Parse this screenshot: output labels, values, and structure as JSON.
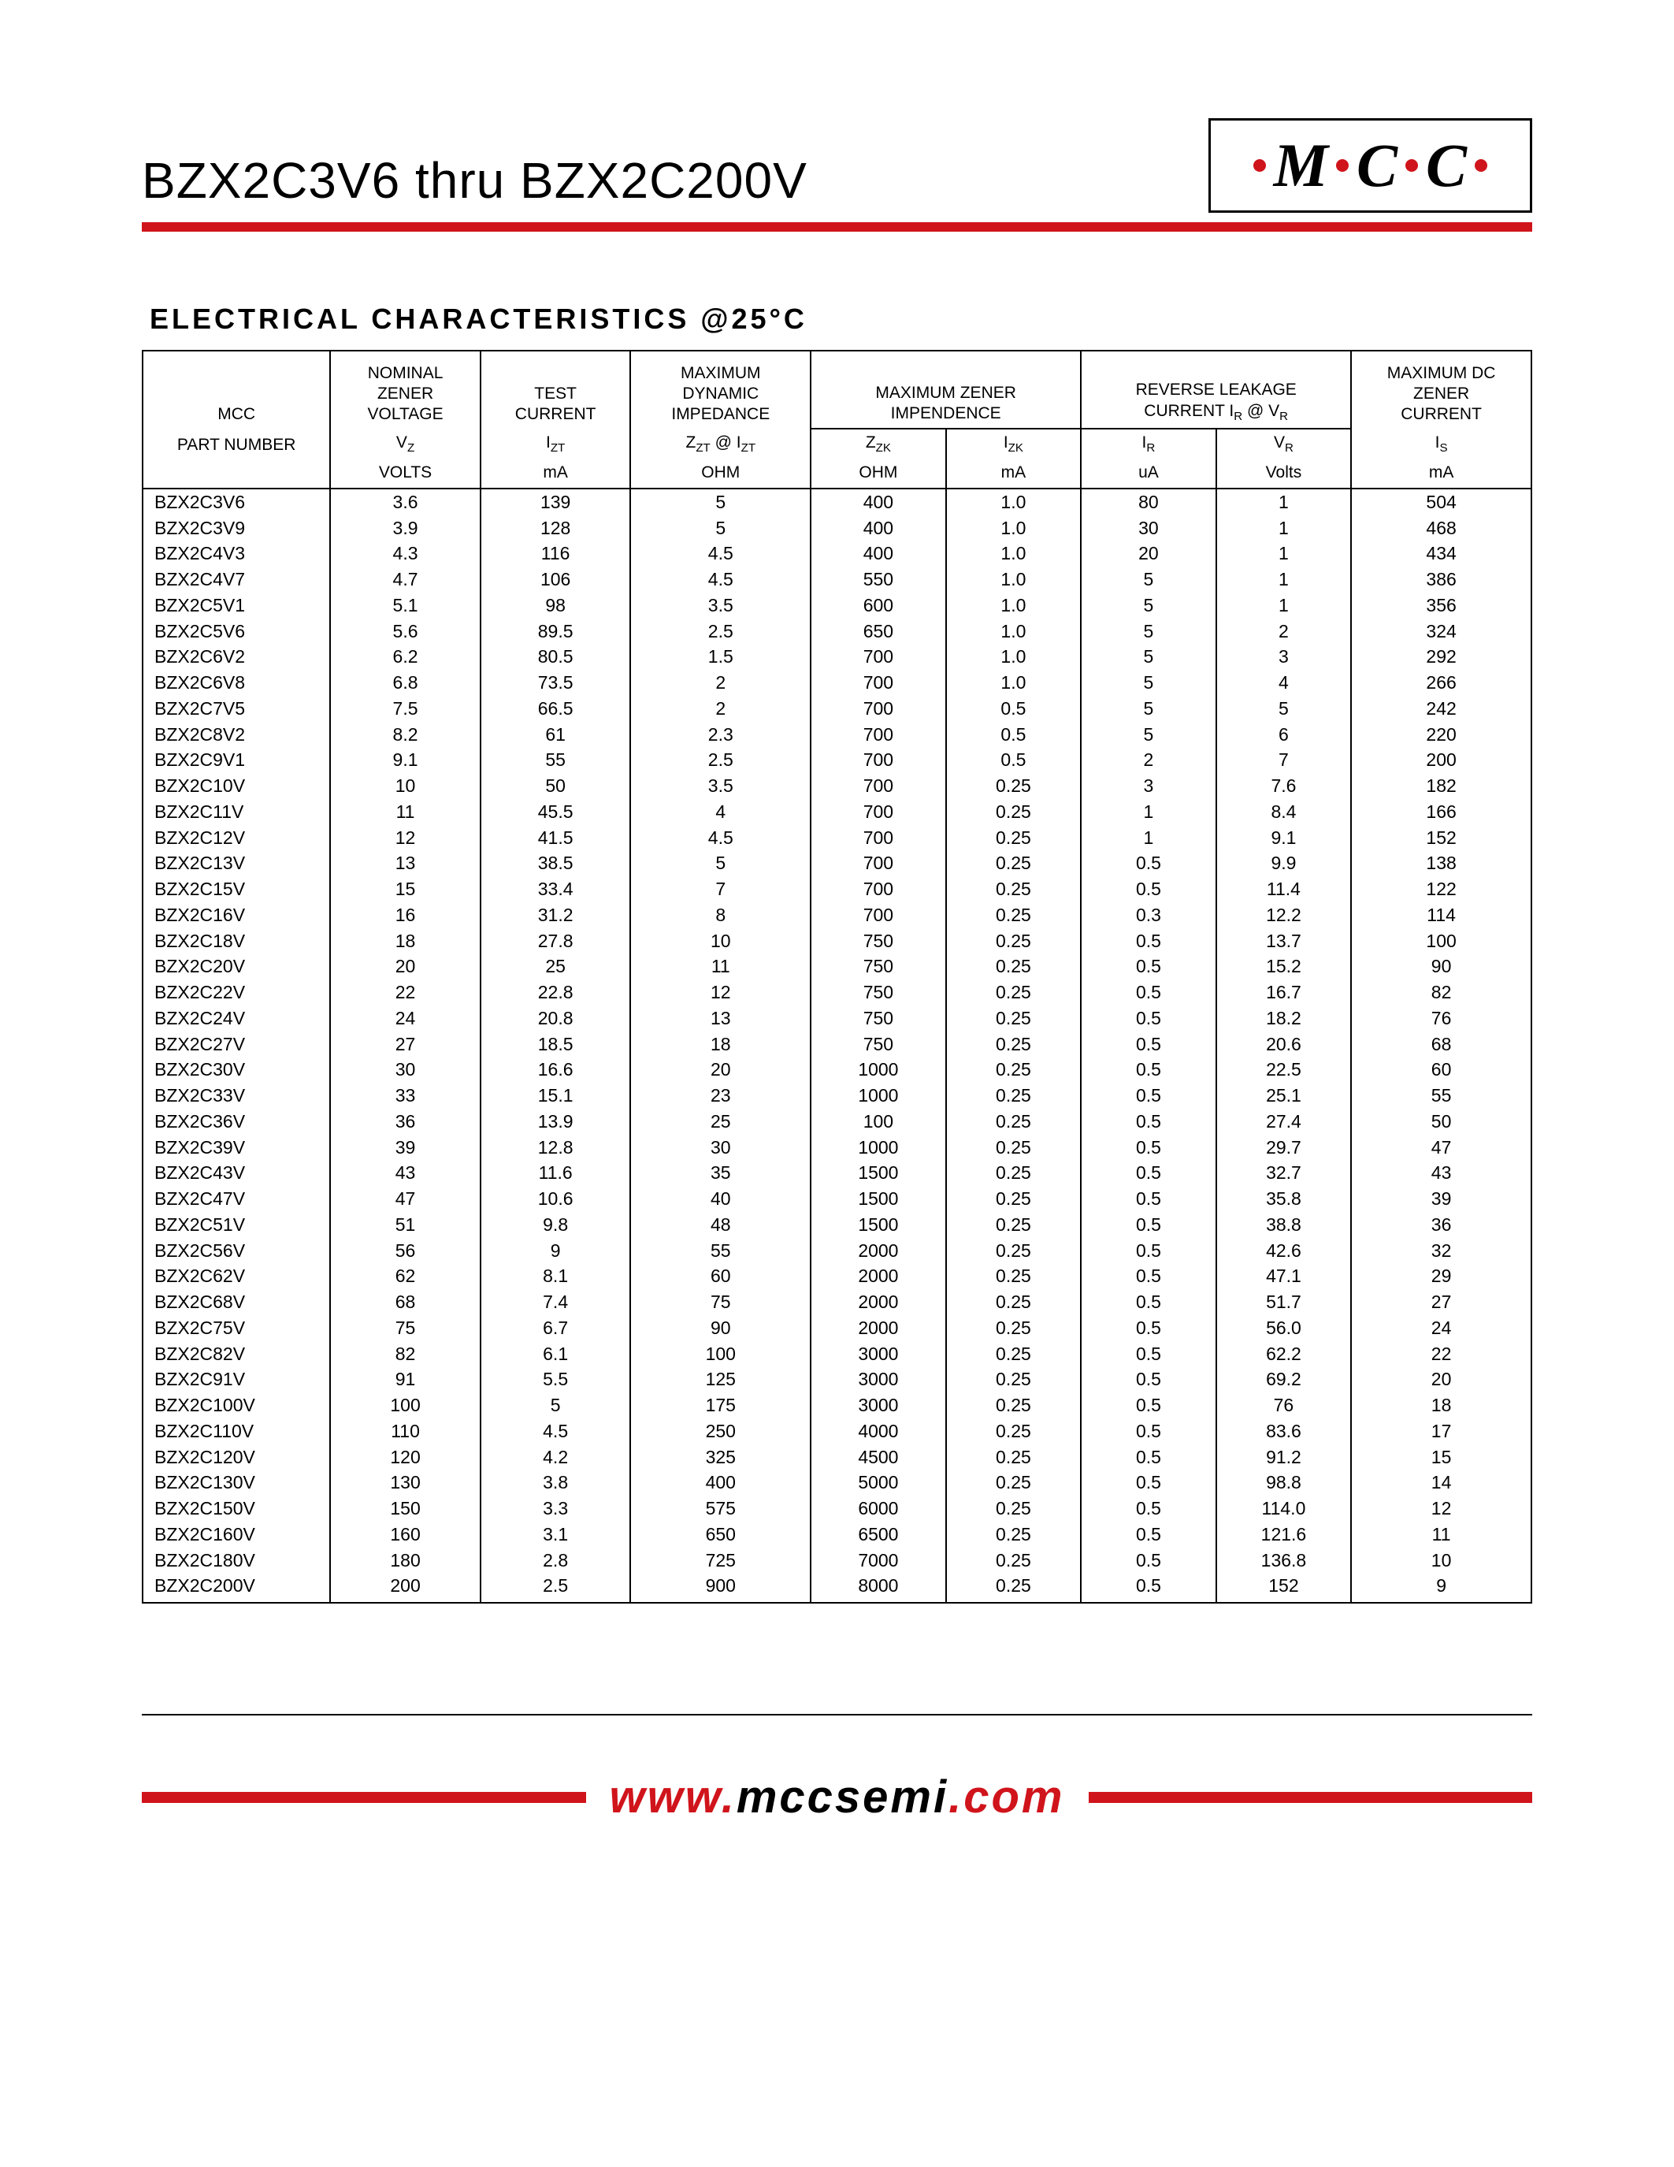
{
  "colors": {
    "accent": "#d0141b",
    "text": "#000000",
    "bg": "#ffffff",
    "border": "#000000"
  },
  "logo": {
    "letters": [
      "M",
      "C",
      "C"
    ]
  },
  "title": "BZX2C3V6 thru BZX2C200V",
  "section_title": "ELECTRICAL CHARACTERISTICS @25°C",
  "footer": {
    "w": "www.",
    "host": "mccsemi",
    "tld": ".com"
  },
  "table": {
    "type": "table",
    "header": {
      "group_top": {
        "c0": "MCC",
        "c1a": "NOMINAL",
        "c1b": "ZENER",
        "c1c": "VOLTAGE",
        "c2a": "TEST",
        "c2b": "CURRENT",
        "c3a": "MAXIMUM",
        "c3b": "DYNAMIC",
        "c3c": "IMPEDANCE",
        "c45a": "MAXIMUM ZENER",
        "c45b": "IMPENDENCE",
        "c67a": "REVERSE LEAKAGE",
        "c67b": "CURRENT I",
        "c67b_sub": "R",
        "c67c": " @ V",
        "c67c_sub": "R",
        "c8a": "MAXIMUM DC",
        "c8b": "ZENER",
        "c8c": "CURRENT"
      },
      "sub": {
        "c0": "PART NUMBER",
        "c1": "V",
        "c1_sub": "Z",
        "c2": "I",
        "c2_sub": "ZT",
        "c3a": "Z",
        "c3a_sub": "ZT",
        "c3b": " @ I",
        "c3b_sub": "ZT",
        "c4": "Z",
        "c4_sub": "ZK",
        "c5": "I",
        "c5_sub": "ZK",
        "c6": "I",
        "c6_sub": "R",
        "c7": "V",
        "c7_sub": "R",
        "c8": "I",
        "c8_sub": "S"
      },
      "units": {
        "c0": "",
        "c1": "VOLTS",
        "c2": "mA",
        "c3": "OHM",
        "c4": "OHM",
        "c5": "mA",
        "c6": "uA",
        "c7": "Volts",
        "c8": "mA"
      }
    },
    "col_widths_pct": [
      12.5,
      10,
      10,
      12,
      9,
      9,
      9,
      9,
      12
    ],
    "rows": [
      [
        "BZX2C3V6",
        "3.6",
        "139",
        "5",
        "400",
        "1.0",
        "80",
        "1",
        "504"
      ],
      [
        "BZX2C3V9",
        "3.9",
        "128",
        "5",
        "400",
        "1.0",
        "30",
        "1",
        "468"
      ],
      [
        "BZX2C4V3",
        "4.3",
        "116",
        "4.5",
        "400",
        "1.0",
        "20",
        "1",
        "434"
      ],
      [
        "BZX2C4V7",
        "4.7",
        "106",
        "4.5",
        "550",
        "1.0",
        "5",
        "1",
        "386"
      ],
      [
        "BZX2C5V1",
        "5.1",
        "98",
        "3.5",
        "600",
        "1.0",
        "5",
        "1",
        "356"
      ],
      [
        "BZX2C5V6",
        "5.6",
        "89.5",
        "2.5",
        "650",
        "1.0",
        "5",
        "2",
        "324"
      ],
      [
        "BZX2C6V2",
        "6.2",
        "80.5",
        "1.5",
        "700",
        "1.0",
        "5",
        "3",
        "292"
      ],
      [
        "BZX2C6V8",
        "6.8",
        "73.5",
        "2",
        "700",
        "1.0",
        "5",
        "4",
        "266"
      ],
      [
        "BZX2C7V5",
        "7.5",
        "66.5",
        "2",
        "700",
        "0.5",
        "5",
        "5",
        "242"
      ],
      [
        "BZX2C8V2",
        "8.2",
        "61",
        "2.3",
        "700",
        "0.5",
        "5",
        "6",
        "220"
      ],
      [
        "BZX2C9V1",
        "9.1",
        "55",
        "2.5",
        "700",
        "0.5",
        "2",
        "7",
        "200"
      ],
      [
        "BZX2C10V",
        "10",
        "50",
        "3.5",
        "700",
        "0.25",
        "3",
        "7.6",
        "182"
      ],
      [
        "BZX2C11V",
        "11",
        "45.5",
        "4",
        "700",
        "0.25",
        "1",
        "8.4",
        "166"
      ],
      [
        "BZX2C12V",
        "12",
        "41.5",
        "4.5",
        "700",
        "0.25",
        "1",
        "9.1",
        "152"
      ],
      [
        "BZX2C13V",
        "13",
        "38.5",
        "5",
        "700",
        "0.25",
        "0.5",
        "9.9",
        "138"
      ],
      [
        "BZX2C15V",
        "15",
        "33.4",
        "7",
        "700",
        "0.25",
        "0.5",
        "11.4",
        "122"
      ],
      [
        "BZX2C16V",
        "16",
        "31.2",
        "8",
        "700",
        "0.25",
        "0.3",
        "12.2",
        "114"
      ],
      [
        "BZX2C18V",
        "18",
        "27.8",
        "10",
        "750",
        "0.25",
        "0.5",
        "13.7",
        "100"
      ],
      [
        "BZX2C20V",
        "20",
        "25",
        "11",
        "750",
        "0.25",
        "0.5",
        "15.2",
        "90"
      ],
      [
        "BZX2C22V",
        "22",
        "22.8",
        "12",
        "750",
        "0.25",
        "0.5",
        "16.7",
        "82"
      ],
      [
        "BZX2C24V",
        "24",
        "20.8",
        "13",
        "750",
        "0.25",
        "0.5",
        "18.2",
        "76"
      ],
      [
        "BZX2C27V",
        "27",
        "18.5",
        "18",
        "750",
        "0.25",
        "0.5",
        "20.6",
        "68"
      ],
      [
        "BZX2C30V",
        "30",
        "16.6",
        "20",
        "1000",
        "0.25",
        "0.5",
        "22.5",
        "60"
      ],
      [
        "BZX2C33V",
        "33",
        "15.1",
        "23",
        "1000",
        "0.25",
        "0.5",
        "25.1",
        "55"
      ],
      [
        "BZX2C36V",
        "36",
        "13.9",
        "25",
        "100",
        "0.25",
        "0.5",
        "27.4",
        "50"
      ],
      [
        "BZX2C39V",
        "39",
        "12.8",
        "30",
        "1000",
        "0.25",
        "0.5",
        "29.7",
        "47"
      ],
      [
        "BZX2C43V",
        "43",
        "11.6",
        "35",
        "1500",
        "0.25",
        "0.5",
        "32.7",
        "43"
      ],
      [
        "BZX2C47V",
        "47",
        "10.6",
        "40",
        "1500",
        "0.25",
        "0.5",
        "35.8",
        "39"
      ],
      [
        "BZX2C51V",
        "51",
        "9.8",
        "48",
        "1500",
        "0.25",
        "0.5",
        "38.8",
        "36"
      ],
      [
        "BZX2C56V",
        "56",
        "9",
        "55",
        "2000",
        "0.25",
        "0.5",
        "42.6",
        "32"
      ],
      [
        "BZX2C62V",
        "62",
        "8.1",
        "60",
        "2000",
        "0.25",
        "0.5",
        "47.1",
        "29"
      ],
      [
        "BZX2C68V",
        "68",
        "7.4",
        "75",
        "2000",
        "0.25",
        "0.5",
        "51.7",
        "27"
      ],
      [
        "BZX2C75V",
        "75",
        "6.7",
        "90",
        "2000",
        "0.25",
        "0.5",
        "56.0",
        "24"
      ],
      [
        "BZX2C82V",
        "82",
        "6.1",
        "100",
        "3000",
        "0.25",
        "0.5",
        "62.2",
        "22"
      ],
      [
        "BZX2C91V",
        "91",
        "5.5",
        "125",
        "3000",
        "0.25",
        "0.5",
        "69.2",
        "20"
      ],
      [
        "BZX2C100V",
        "100",
        "5",
        "175",
        "3000",
        "0.25",
        "0.5",
        "76",
        "18"
      ],
      [
        "BZX2C110V",
        "110",
        "4.5",
        "250",
        "4000",
        "0.25",
        "0.5",
        "83.6",
        "17"
      ],
      [
        "BZX2C120V",
        "120",
        "4.2",
        "325",
        "4500",
        "0.25",
        "0.5",
        "91.2",
        "15"
      ],
      [
        "BZX2C130V",
        "130",
        "3.8",
        "400",
        "5000",
        "0.25",
        "0.5",
        "98.8",
        "14"
      ],
      [
        "BZX2C150V",
        "150",
        "3.3",
        "575",
        "6000",
        "0.25",
        "0.5",
        "114.0",
        "12"
      ],
      [
        "BZX2C160V",
        "160",
        "3.1",
        "650",
        "6500",
        "0.25",
        "0.5",
        "121.6",
        "11"
      ],
      [
        "BZX2C180V",
        "180",
        "2.8",
        "725",
        "7000",
        "0.25",
        "0.5",
        "136.8",
        "10"
      ],
      [
        "BZX2C200V",
        "200",
        "2.5",
        "900",
        "8000",
        "0.25",
        "0.5",
        "152",
        "9"
      ]
    ]
  }
}
